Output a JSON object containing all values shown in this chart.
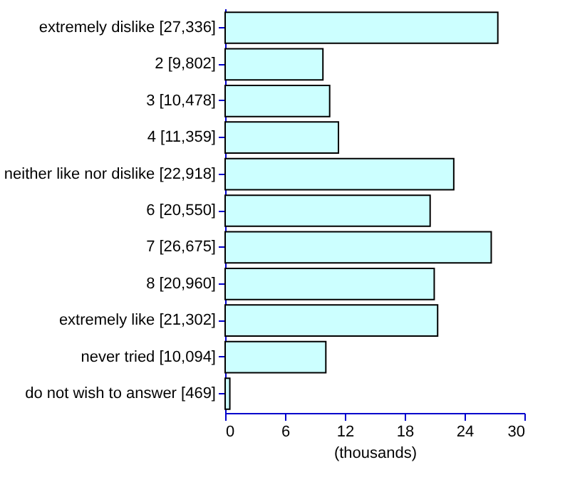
{
  "chart_data": {
    "type": "bar",
    "orientation": "horizontal",
    "categories": [
      "extremely dislike [27,336]",
      "2 [9,802]",
      "3 [10,478]",
      "4 [11,359]",
      "neither like nor dislike [22,918]",
      "6 [20,550]",
      "7 [26,675]",
      "8 [20,960]",
      "extremely like [21,302]",
      "never tried [10,094]",
      "do not wish to answer [469]"
    ],
    "values": [
      27.336,
      9.802,
      10.478,
      11.359,
      22.918,
      20.55,
      26.675,
      20.96,
      21.302,
      10.094,
      0.469
    ],
    "color": "#ccffff",
    "xlabel": "(thousands)",
    "xlim": [
      0,
      30
    ],
    "xticks": [
      0,
      6,
      12,
      18,
      24,
      30
    ],
    "grid": false
  }
}
